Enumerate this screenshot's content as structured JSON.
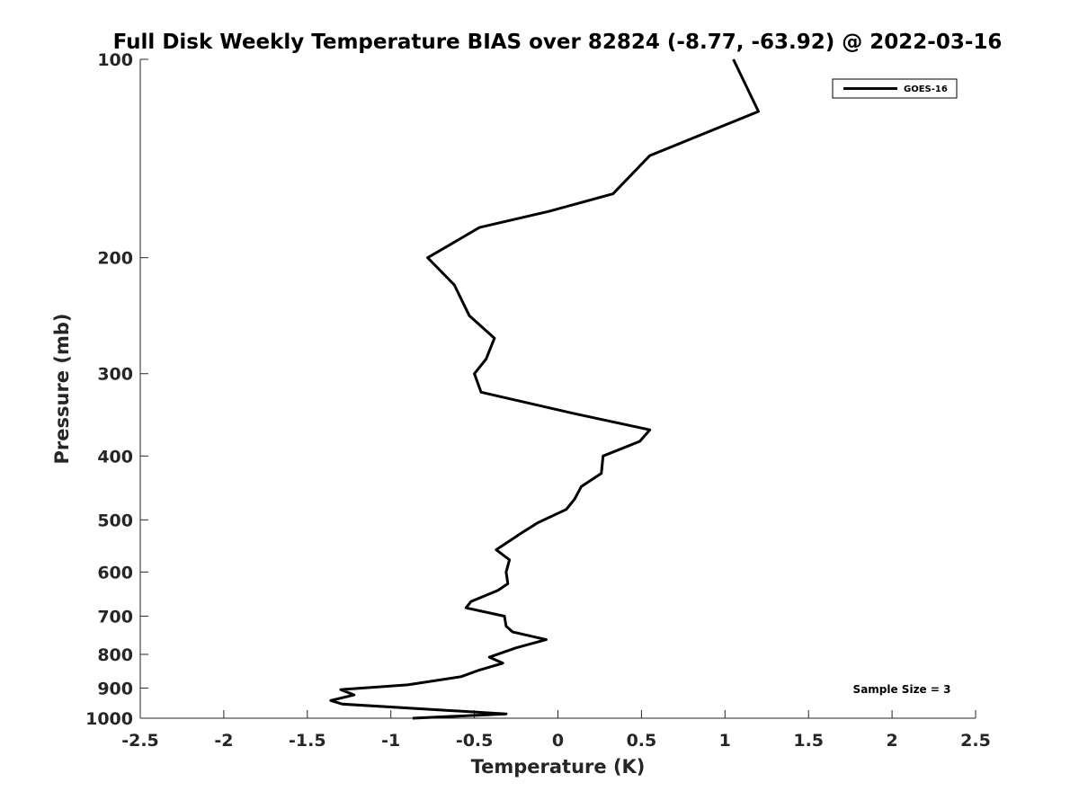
{
  "chart_data": {
    "type": "line",
    "title": "Full Disk Weekly Temperature BIAS over 82824 (-8.77, -63.92) @ 2022-03-16",
    "xlabel": "Temperature (K)",
    "ylabel": "Pressure (mb)",
    "xlim": [
      -2.5,
      2.5
    ],
    "ylim": [
      1000,
      100
    ],
    "y_scale": "log",
    "y_reversed": true,
    "x_ticks": [
      -2.5,
      -2,
      -1.5,
      -1,
      -0.5,
      0,
      0.5,
      1,
      1.5,
      2,
      2.5
    ],
    "x_tick_labels": [
      "-2.5",
      "-2",
      "-1.5",
      "-1",
      "-0.5",
      "0",
      "0.5",
      "1",
      "1.5",
      "2",
      "2.5"
    ],
    "y_ticks": [
      100,
      200,
      300,
      400,
      500,
      600,
      700,
      800,
      900,
      1000
    ],
    "y_tick_labels": [
      "100",
      "200",
      "300",
      "400",
      "500",
      "600",
      "700",
      "800",
      "900",
      "1000"
    ],
    "grid": false,
    "legend": {
      "position": "top-right",
      "entries": [
        "GOES-16"
      ]
    },
    "annotation": "Sample Size = 3",
    "series": [
      {
        "name": "GOES-16",
        "color": "#000000",
        "points": [
          {
            "x": 1.05,
            "p": 100
          },
          {
            "x": 1.2,
            "p": 120
          },
          {
            "x": 0.55,
            "p": 140
          },
          {
            "x": 0.33,
            "p": 160
          },
          {
            "x": -0.05,
            "p": 170
          },
          {
            "x": -0.47,
            "p": 180
          },
          {
            "x": -0.78,
            "p": 200
          },
          {
            "x": -0.62,
            "p": 220
          },
          {
            "x": -0.53,
            "p": 245
          },
          {
            "x": -0.38,
            "p": 265
          },
          {
            "x": -0.43,
            "p": 285
          },
          {
            "x": -0.5,
            "p": 300
          },
          {
            "x": -0.46,
            "p": 320
          },
          {
            "x": 0.1,
            "p": 345
          },
          {
            "x": 0.55,
            "p": 365
          },
          {
            "x": 0.49,
            "p": 380
          },
          {
            "x": 0.27,
            "p": 400
          },
          {
            "x": 0.26,
            "p": 425
          },
          {
            "x": 0.14,
            "p": 445
          },
          {
            "x": 0.1,
            "p": 465
          },
          {
            "x": 0.05,
            "p": 482
          },
          {
            "x": -0.12,
            "p": 505
          },
          {
            "x": -0.2,
            "p": 520
          },
          {
            "x": -0.37,
            "p": 555
          },
          {
            "x": -0.29,
            "p": 575
          },
          {
            "x": -0.31,
            "p": 600
          },
          {
            "x": -0.3,
            "p": 625
          },
          {
            "x": -0.36,
            "p": 640
          },
          {
            "x": -0.52,
            "p": 665
          },
          {
            "x": -0.55,
            "p": 680
          },
          {
            "x": -0.32,
            "p": 700
          },
          {
            "x": -0.31,
            "p": 725
          },
          {
            "x": -0.27,
            "p": 740
          },
          {
            "x": -0.07,
            "p": 760
          },
          {
            "x": -0.25,
            "p": 782
          },
          {
            "x": -0.41,
            "p": 808
          },
          {
            "x": -0.33,
            "p": 825
          },
          {
            "x": -0.47,
            "p": 845
          },
          {
            "x": -0.58,
            "p": 865
          },
          {
            "x": -0.9,
            "p": 890
          },
          {
            "x": -1.3,
            "p": 905
          },
          {
            "x": -1.22,
            "p": 922
          },
          {
            "x": -1.36,
            "p": 940
          },
          {
            "x": -1.29,
            "p": 952
          },
          {
            "x": -0.31,
            "p": 985
          },
          {
            "x": -0.87,
            "p": 1000
          }
        ]
      }
    ]
  }
}
